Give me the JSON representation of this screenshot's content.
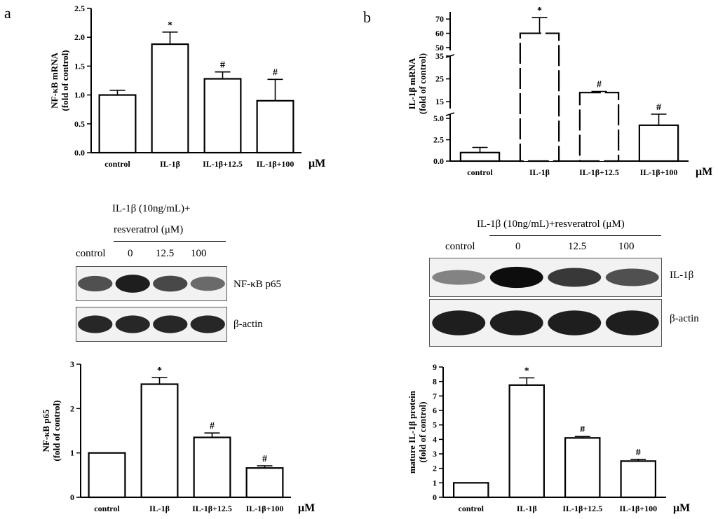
{
  "panel_labels": {
    "a": "a",
    "b": "b"
  },
  "chart_data": [
    {
      "type": "bar",
      "categories": [
        "control",
        "IL-1β",
        "IL-1β+12.5",
        "IL-1β+100"
      ],
      "values": [
        1.0,
        1.88,
        1.28,
        0.9
      ],
      "errors": [
        0.08,
        0.21,
        0.12,
        0.37
      ],
      "annotations": [
        "",
        "*",
        "#",
        "#"
      ],
      "ylabel": [
        "NF-κB mRNA",
        "(fold of control)"
      ],
      "unit": "μM",
      "ylim": [
        0,
        2.5
      ],
      "yticks": [
        0.0,
        0.5,
        1.0,
        1.5,
        2.0,
        2.5
      ]
    },
    {
      "type": "bar",
      "categories": [
        "control",
        "IL-1β",
        "IL-1β+12.5",
        "IL-1β+100"
      ],
      "values": [
        1.0,
        60.0,
        19.0,
        4.2
      ],
      "errors": [
        0.6,
        11.0,
        0.5,
        1.3
      ],
      "annotations": [
        "",
        "*",
        "#",
        "#"
      ],
      "ylabel": [
        "IL-1β mRNA",
        "(fold of control)"
      ],
      "unit": "μM",
      "axis_breaks": [
        [
          0,
          5.5
        ],
        [
          12,
          35
        ],
        [
          48,
          75
        ]
      ],
      "yticks": [
        0.0,
        2.5,
        5.0,
        15,
        25,
        35,
        50,
        60,
        70
      ]
    },
    {
      "type": "bar",
      "categories": [
        "control",
        "IL-1β",
        "IL-1β+12.5",
        "IL-1β+100"
      ],
      "values": [
        1.0,
        2.55,
        1.35,
        0.66
      ],
      "errors": [
        0.0,
        0.15,
        0.1,
        0.05
      ],
      "annotations": [
        "",
        "*",
        "#",
        "#"
      ],
      "ylabel": [
        "NF-κB p65",
        "(fold of control)"
      ],
      "unit": "μM",
      "ylim": [
        0,
        3
      ],
      "yticks": [
        0,
        1,
        2,
        3
      ]
    },
    {
      "type": "bar",
      "categories": [
        "control",
        "IL-1β",
        "IL-1β+12.5",
        "IL-1β+100"
      ],
      "values": [
        1.0,
        7.75,
        4.1,
        2.5
      ],
      "errors": [
        0.0,
        0.5,
        0.1,
        0.12
      ],
      "annotations": [
        "",
        "*",
        "#",
        "#"
      ],
      "ylabel": [
        "mature IL-1β protein",
        "(fold of control)"
      ],
      "unit": "μM",
      "ylim": [
        0,
        9
      ],
      "yticks": [
        0,
        1,
        2,
        3,
        4,
        5,
        6,
        7,
        8,
        9
      ]
    }
  ],
  "blot_a": {
    "header_line1": "IL-1β (10ng/mL)+",
    "header_line2": "resveratrol (μM)",
    "lanes": [
      "control",
      "0",
      "12.5",
      "100"
    ],
    "row_labels": [
      "NF-κB p65",
      "β-actin"
    ],
    "band_intensity": [
      [
        0.6,
        0.9,
        0.65,
        0.45
      ],
      [
        0.85,
        0.85,
        0.85,
        0.85
      ]
    ]
  },
  "blot_b": {
    "header": "IL-1β (10ng/mL)+resveratrol (μM)",
    "lanes": [
      "control",
      "0",
      "12.5",
      "100"
    ],
    "row_labels": [
      "IL-1β",
      "β-actin"
    ],
    "band_intensity": [
      [
        0.3,
        1.0,
        0.75,
        0.6
      ],
      [
        0.9,
        0.9,
        0.9,
        0.9
      ]
    ]
  }
}
